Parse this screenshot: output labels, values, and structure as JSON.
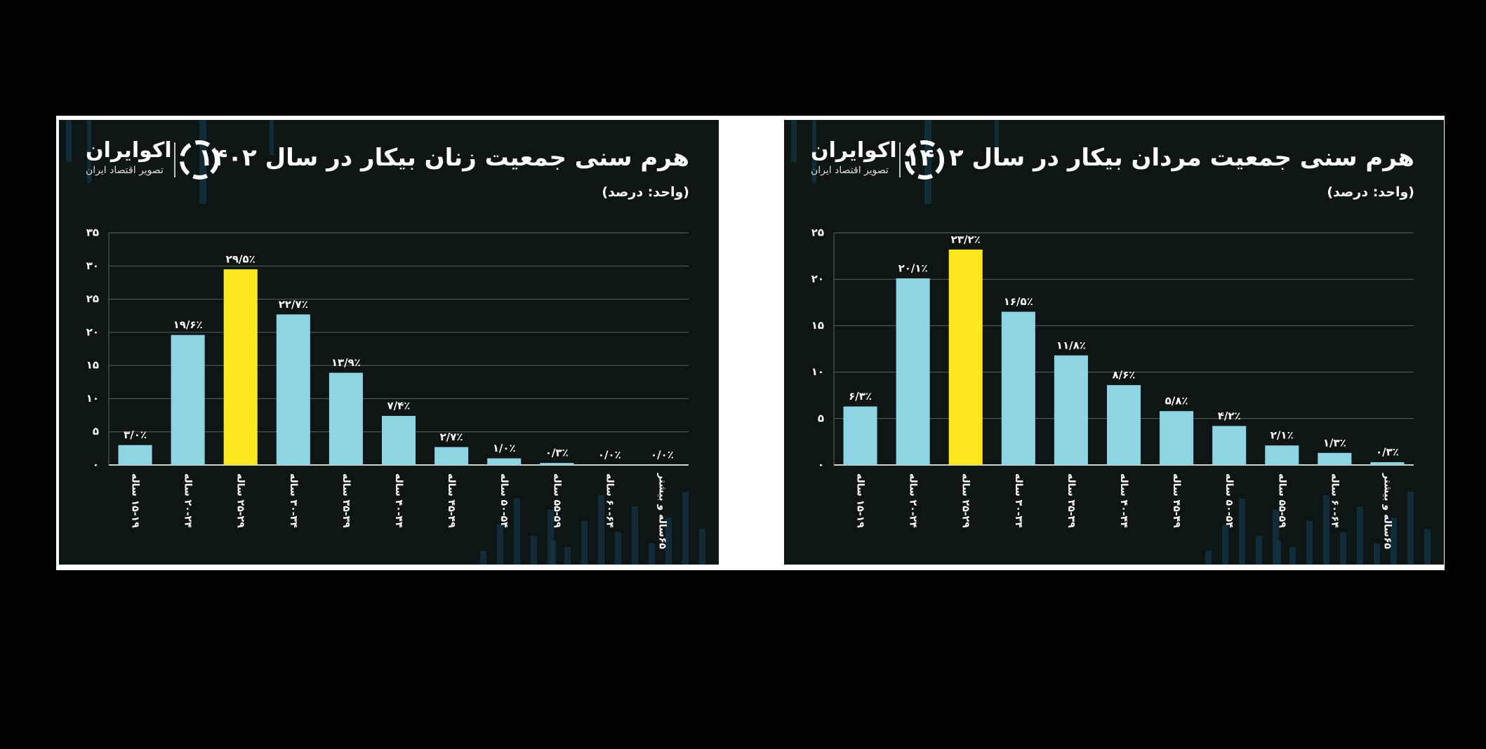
{
  "chart_data": [
    {
      "type": "bar",
      "title": "هرم سنی جمعیت زنان بیکار در سال ۱۴۰۲",
      "subtitle": "(واحد: درصد)",
      "brand": "اکوایران",
      "brand_tagline": "تصویر اقتصاد ایران",
      "categories": [
        "۱۵-۱۹ ساله",
        "۲۰-۲۴ ساله",
        "۲۵-۲۹ ساله",
        "۳۰-۳۴ ساله",
        "۳۵-۳۹ ساله",
        "۴۰-۴۴ ساله",
        "۴۵-۴۹ ساله",
        "۵۰-۵۴ ساله",
        "۵۵-۵۹ ساله",
        "۶۰-۶۴ ساله",
        "۶۵ساله و بیشتر"
      ],
      "values": [
        3.0,
        19.6,
        29.5,
        22.7,
        13.9,
        7.4,
        2.7,
        1.0,
        0.3,
        0.0,
        0.0
      ],
      "value_labels": [
        "۳/۰٪",
        "۱۹/۶٪",
        "۲۹/۵٪",
        "۲۲/۷٪",
        "۱۳/۹٪",
        "۷/۴٪",
        "۲/۷٪",
        "۱/۰٪",
        "۰/۳٪",
        "۰/۰٪",
        "۰/۰٪"
      ],
      "colors": [
        "#8fd4e2",
        "#8fd4e2",
        "#ffe81f",
        "#8fd4e2",
        "#8fd4e2",
        "#8fd4e2",
        "#8fd4e2",
        "#8fd4e2",
        "#8fd4e2",
        "#8fd4e2",
        "#8fd4e2"
      ],
      "ylim": [
        0,
        35
      ],
      "yticks": [
        {
          "value": 0,
          "label": "۰"
        },
        {
          "value": 5,
          "label": "۵"
        },
        {
          "value": 10,
          "label": "۱۰"
        },
        {
          "value": 15,
          "label": "۱۵"
        },
        {
          "value": 20,
          "label": "۲۰"
        },
        {
          "value": 25,
          "label": "۲۵"
        },
        {
          "value": 30,
          "label": "۳۰"
        },
        {
          "value": 35,
          "label": "۳۵"
        }
      ],
      "grid": true
    },
    {
      "type": "bar",
      "title": "هرم سنی جمعیت مردان بیکار در سال ۱۴۰۲",
      "subtitle": "(واحد: درصد)",
      "brand": "اکوایران",
      "brand_tagline": "تصویر اقتصاد ایران",
      "categories": [
        "۱۵-۱۹ ساله",
        "۲۰-۲۴ ساله",
        "۲۵-۲۹ ساله",
        "۳۰-۳۴ ساله",
        "۳۵-۳۹ ساله",
        "۴۰-۴۴ ساله",
        "۴۵-۴۹ ساله",
        "۵۰-۵۴ ساله",
        "۵۵-۵۹ ساله",
        "۶۰-۶۴ ساله",
        "۶۵ساله و بیشتر"
      ],
      "values": [
        6.3,
        20.1,
        23.2,
        16.5,
        11.8,
        8.6,
        5.8,
        4.2,
        2.1,
        1.3,
        0.3
      ],
      "value_labels": [
        "۶/۳٪",
        "۲۰/۱٪",
        "۲۳/۲٪",
        "۱۶/۵٪",
        "۱۱/۸٪",
        "۸/۶٪",
        "۵/۸٪",
        "۴/۲٪",
        "۲/۱٪",
        "۱/۳٪",
        "۰/۳٪"
      ],
      "colors": [
        "#8fd4e2",
        "#8fd4e2",
        "#ffe81f",
        "#8fd4e2",
        "#8fd4e2",
        "#8fd4e2",
        "#8fd4e2",
        "#8fd4e2",
        "#8fd4e2",
        "#8fd4e2",
        "#8fd4e2"
      ],
      "ylim": [
        0,
        25
      ],
      "yticks": [
        {
          "value": 0,
          "label": "۰"
        },
        {
          "value": 5,
          "label": "۵"
        },
        {
          "value": 10,
          "label": "۱۰"
        },
        {
          "value": 15,
          "label": "۱۵"
        },
        {
          "value": 20,
          "label": "۲۰"
        },
        {
          "value": 25,
          "label": "۲۵"
        }
      ],
      "grid": true
    }
  ]
}
